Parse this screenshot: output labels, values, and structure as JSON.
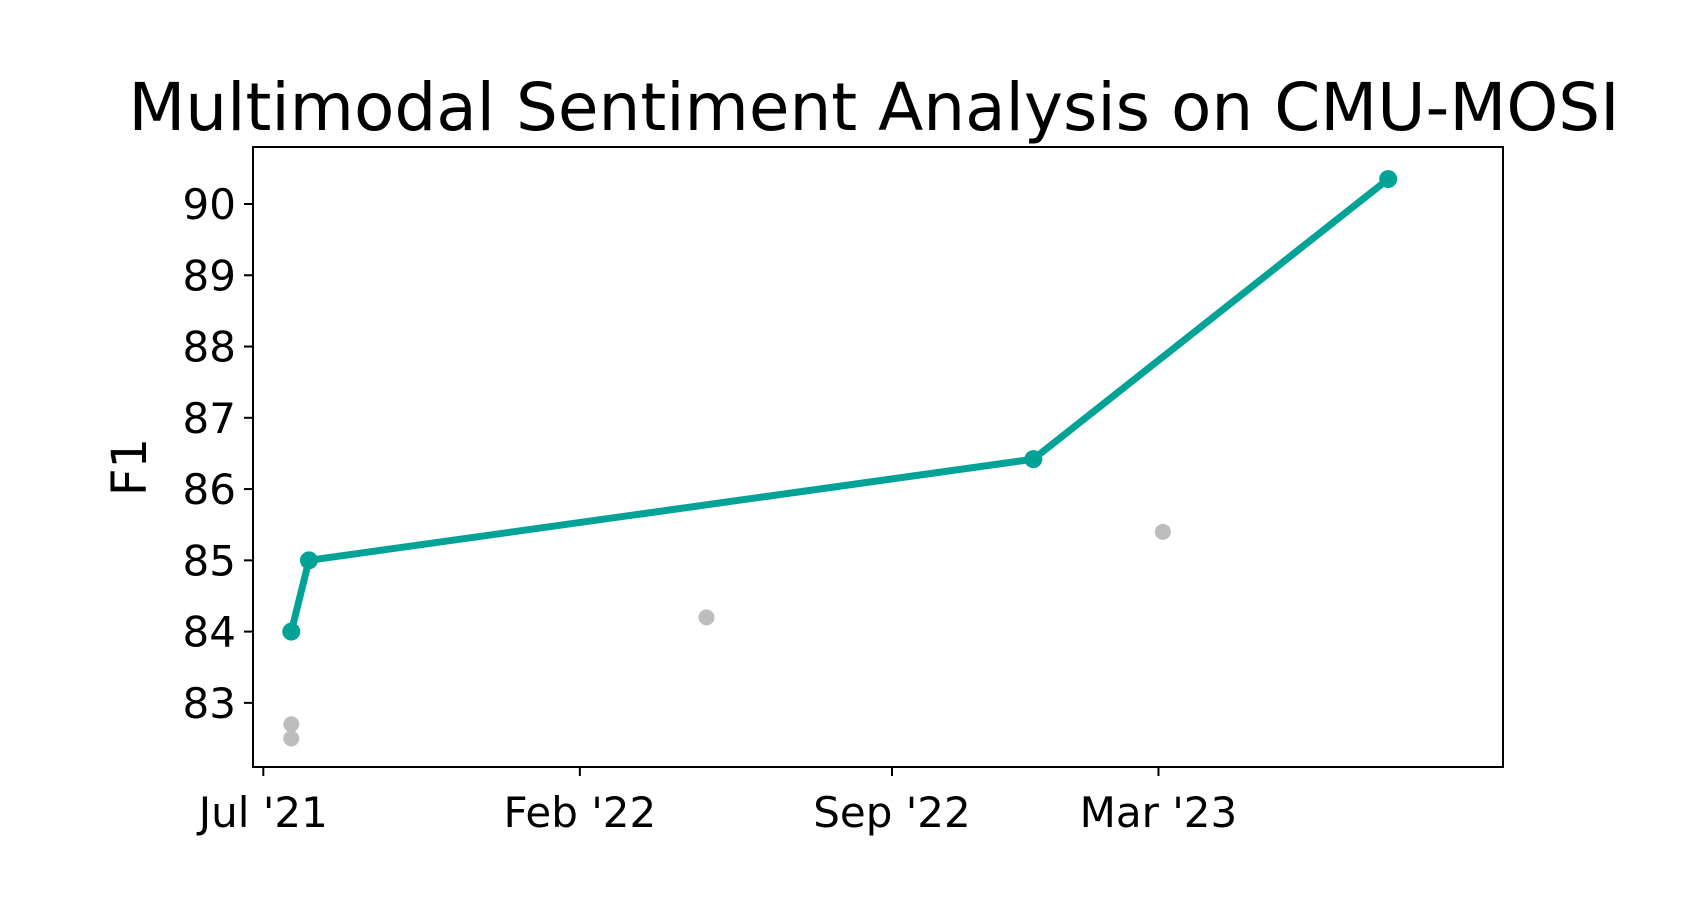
{
  "chart_data": {
    "type": "line",
    "title": "Multimodal Sentiment Analysis on CMU-MOSI",
    "ylabel": "F1",
    "xlabel": "",
    "x_type": "date",
    "x_ticks": [
      {
        "date": "2021-07-01",
        "label": "Jul '21"
      },
      {
        "date": "2022-02-01",
        "label": "Feb '22"
      },
      {
        "date": "2022-09-01",
        "label": "Sep '22"
      },
      {
        "date": "2023-03-01",
        "label": "Mar '23"
      }
    ],
    "y_ticks": [
      83,
      84,
      85,
      86,
      87,
      88,
      89,
      90
    ],
    "xlim": [
      "2021-06-24",
      "2023-10-21"
    ],
    "ylim": [
      82.1,
      90.8
    ],
    "grid": false,
    "colors": {
      "frontier": "#00a396",
      "other": "#bdbdbd"
    },
    "series": [
      {
        "role": "frontier",
        "points": [
          {
            "x": "2021-07-20",
            "y": 84.0
          },
          {
            "x": "2021-08-01",
            "y": 85.0
          },
          {
            "x": "2022-12-06",
            "y": 86.42
          },
          {
            "x": "2023-08-04",
            "y": 90.35
          }
        ]
      },
      {
        "role": "other",
        "points": [
          {
            "x": "2021-07-20",
            "y": 82.7
          },
          {
            "x": "2021-07-20",
            "y": 82.5
          },
          {
            "x": "2022-04-28",
            "y": 84.2
          },
          {
            "x": "2023-03-04",
            "y": 85.4
          }
        ]
      }
    ]
  }
}
